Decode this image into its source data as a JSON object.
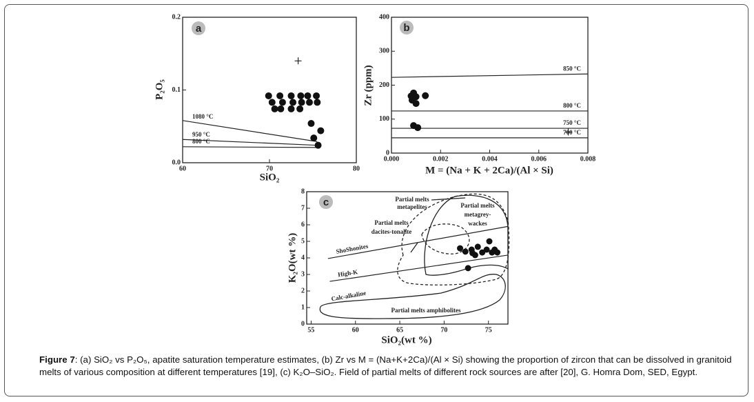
{
  "chart_data": [
    {
      "type": "scatter",
      "panel_label": "a",
      "xlabel": "SiO₂",
      "ylabel": "P₂O₅",
      "xlim": [
        60,
        80
      ],
      "ylim": [
        0,
        0.2
      ],
      "xticks": [
        60,
        70,
        80
      ],
      "yticks": [
        {
          "value": 0,
          "label": "0.0"
        },
        0.1,
        0.2
      ],
      "series": [
        {
          "color": "#111111",
          "x": [
            69.9,
            71.2,
            72.5,
            73.6,
            74.4,
            75.4,
            70.3,
            71.5,
            72.7,
            73.7,
            74.6,
            75.5,
            70.6,
            71.3,
            72.5,
            73.5,
            74.8,
            75.9,
            75.1,
            75.6
          ],
          "values": [
            0.092,
            0.092,
            0.092,
            0.092,
            0.092,
            0.092,
            0.083,
            0.083,
            0.083,
            0.083,
            0.083,
            0.083,
            0.074,
            0.074,
            0.074,
            0.074,
            0.054,
            0.044,
            0.034,
            0.024
          ]
        }
      ],
      "plus_points": {
        "x": [
          73.3
        ],
        "values": [
          0.14
        ]
      },
      "reference_lines": [
        {
          "label": "1080 °C",
          "x": [
            60,
            75.5
          ],
          "values": [
            0.058,
            0.029
          ]
        },
        {
          "label": "950 °C",
          "x": [
            60,
            75.5
          ],
          "values": [
            0.032,
            0.024
          ]
        },
        {
          "label": "800 °C",
          "x": [
            60,
            75.5
          ],
          "values": [
            0.022,
            0.021
          ]
        }
      ]
    },
    {
      "type": "scatter",
      "panel_label": "b",
      "xlabel": "M = (Na + K + 2Ca)/(Al × Si)",
      "ylabel": "Zr (ppm)",
      "xlim": [
        0,
        0.008
      ],
      "ylim": [
        0,
        400
      ],
      "xticks": [
        {
          "value": 0,
          "label": "0.000"
        },
        {
          "value": 0.002,
          "label": "0.002"
        },
        {
          "value": 0.004,
          "label": "0.004"
        },
        {
          "value": 0.006,
          "label": "0.006"
        },
        {
          "value": 0.008,
          "label": "0.008"
        }
      ],
      "yticks": [
        0,
        100,
        200,
        300,
        400
      ],
      "series": [
        {
          "color": "#111111",
          "x": [
            0.0009,
            0.001,
            0.00084,
            0.001,
            0.00138,
            0.0009,
            0.00107,
            0.0008
          ],
          "values": [
            177,
            166,
            156,
            146,
            169,
            81,
            75,
            168
          ]
        }
      ],
      "plus_points": {
        "x": [
          0.0072
        ],
        "values": [
          62
        ]
      },
      "reference_lines": [
        {
          "label": "850 °C",
          "x": [
            0,
            0.008
          ],
          "values": [
            223,
            233
          ]
        },
        {
          "label": "800 °C",
          "x": [
            0,
            0.008
          ],
          "values": [
            124,
            124
          ]
        },
        {
          "label": "750 °C",
          "x": [
            0,
            0.008
          ],
          "values": [
            73,
            73
          ]
        },
        {
          "label": "700 °C",
          "x": [
            0,
            0.008
          ],
          "values": [
            45,
            45
          ]
        }
      ]
    },
    {
      "type": "scatter",
      "panel_label": "c",
      "xlabel": "SiO₂(wt %)",
      "ylabel": "K₂O(wt %)",
      "xlim": [
        54.5,
        77.2
      ],
      "ylim": [
        0,
        8
      ],
      "xticks": [
        55,
        60,
        65,
        70,
        75
      ],
      "yticks": [
        0,
        1,
        2,
        3,
        4,
        5,
        6,
        7,
        8
      ],
      "series": [
        {
          "color": "#111111",
          "x": [
            71.8,
            72.4,
            73.1,
            73.5,
            73.8,
            74.3,
            74.8,
            75.1,
            75.4,
            75.7,
            76.0,
            72.7,
            73.2
          ],
          "values": [
            4.58,
            4.38,
            4.5,
            4.17,
            4.67,
            4.33,
            4.5,
            5.0,
            4.33,
            4.5,
            4.33,
            3.38,
            4.29
          ]
        }
      ],
      "reference_lines": [
        {
          "label": "ShoShonites",
          "x": [
            56.9,
            77.2
          ],
          "values": [
            3.96,
            5.9
          ]
        },
        {
          "label": "High-K",
          "x": [
            57.1,
            77.2
          ],
          "values": [
            2.58,
            4.17
          ]
        }
      ],
      "field_labels": [
        [
          "Partial melts",
          "metapelites"
        ],
        [
          "Partial melts",
          "metagrey-",
          "wackes"
        ],
        [
          "Partial melts",
          "dacites-tonalite"
        ],
        [
          "Calc-alkaline"
        ],
        [
          "Partial melts amphibolites"
        ]
      ]
    }
  ],
  "caption": {
    "label": "Figure 7",
    "text": ": (a) SiO₂ vs P₂O₅, apatite saturation temperature estimates, (b) Zr vs M = (Na+K+2Ca)/(Al × Si) showing the proportion of zircon that can be dissolved in granitoid melts of various composition at different temperatures [19], (c) K₂O–SiO₂. Field of partial melts of different rock sources are after [20], G. Homra Dom, SED, Egypt."
  }
}
